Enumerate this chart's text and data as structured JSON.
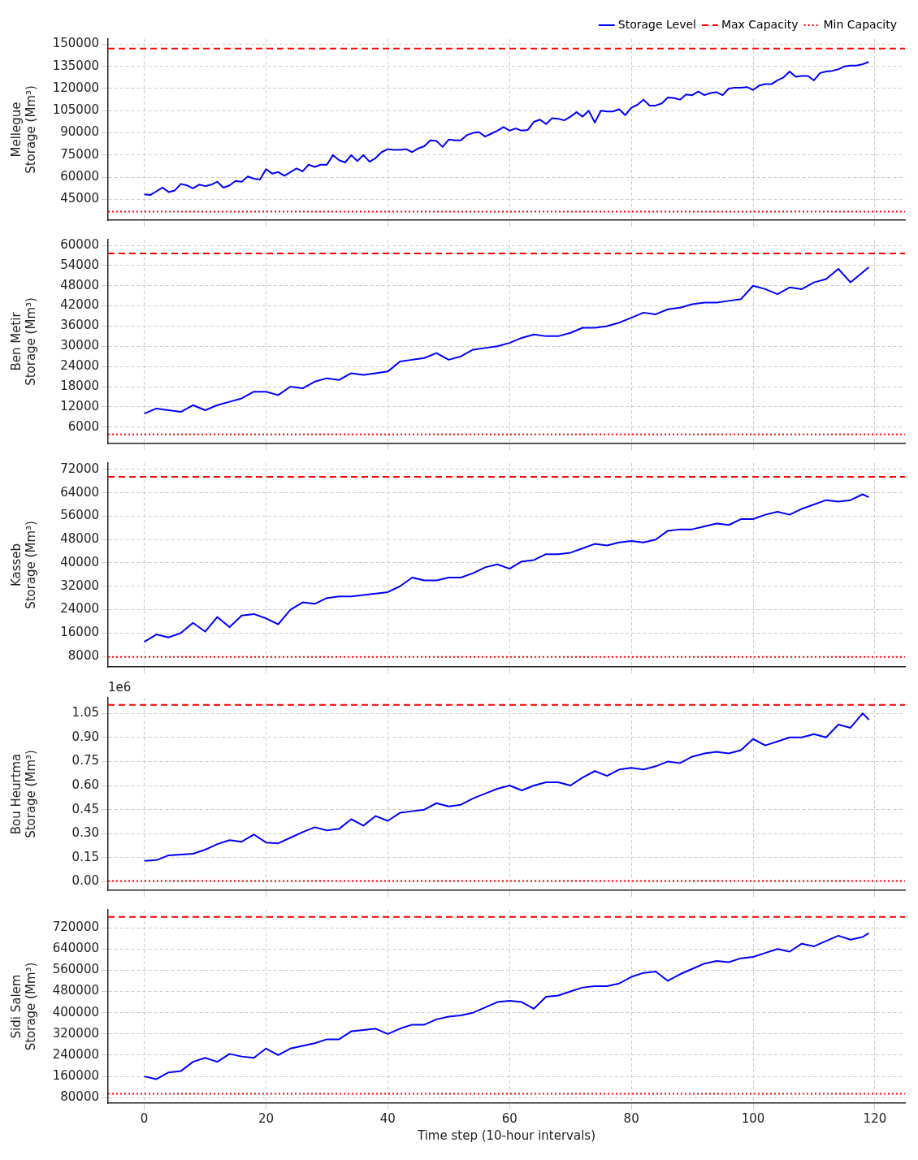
{
  "chart_data": [
    {
      "type": "line",
      "ylabel": "Mellegue\nStorage (Mm³)",
      "x": [
        0,
        1,
        2,
        3,
        4,
        5,
        6,
        7,
        8,
        9,
        10,
        11,
        12,
        13,
        14,
        15,
        16,
        17,
        18,
        19,
        20,
        21,
        22,
        23,
        24,
        25,
        26,
        27,
        28,
        29,
        30,
        31,
        32,
        33,
        34,
        35,
        36,
        37,
        38,
        39,
        40,
        41,
        42,
        43,
        44,
        45,
        46,
        47,
        48,
        49,
        50,
        51,
        52,
        53,
        54,
        55,
        56,
        57,
        58,
        59,
        60,
        61,
        62,
        63,
        64,
        65,
        66,
        67,
        68,
        69,
        70,
        71,
        72,
        73,
        74,
        75,
        76,
        77,
        78,
        79,
        80,
        81,
        82,
        83,
        84,
        85,
        86,
        87,
        88,
        89,
        90,
        91,
        92,
        93,
        94,
        95,
        96,
        97,
        98,
        99,
        100,
        101,
        102,
        103,
        104,
        105,
        106,
        107,
        108,
        109,
        110,
        111,
        112,
        113,
        114,
        115,
        116,
        117,
        118,
        119
      ],
      "series": [
        {
          "name": "Storage Level",
          "color": "#0000ff",
          "values": [
            48500,
            48000,
            50500,
            53000,
            50000,
            51000,
            55500,
            54500,
            52500,
            55000,
            54000,
            55000,
            57000,
            53000,
            54500,
            57500,
            57000,
            60500,
            59000,
            58500,
            65500,
            62500,
            63500,
            61000,
            63500,
            66000,
            64000,
            68500,
            67000,
            68500,
            68500,
            75000,
            71500,
            70000,
            75000,
            71000,
            75000,
            70500,
            73000,
            77000,
            79000,
            78500,
            78500,
            79000,
            77000,
            79500,
            81000,
            85000,
            84500,
            80500,
            85500,
            85000,
            85000,
            88500,
            90000,
            90500,
            87500,
            89500,
            91500,
            94000,
            91500,
            93000,
            91500,
            92000,
            97500,
            99000,
            96000,
            100000,
            99500,
            98500,
            101000,
            104000,
            101000,
            105000,
            97000,
            105000,
            104500,
            104500,
            106000,
            102000,
            107000,
            109000,
            112500,
            108500,
            108500,
            110000,
            114000,
            113500,
            112500,
            116000,
            115500,
            118000,
            115500,
            117000,
            117500,
            115500,
            120000,
            120500,
            120500,
            121000,
            119000,
            122000,
            123000,
            123000,
            125500,
            127500,
            131500,
            128000,
            128500,
            128500,
            125500,
            130500,
            131500,
            132000,
            133000,
            135000,
            135500,
            135500,
            136500,
            138000
          ]
        }
      ],
      "ref_lines": [
        {
          "axis": "y",
          "value": 147000,
          "label": "Max Capacity",
          "color": "#ff0000",
          "line_style": "dashed"
        },
        {
          "axis": "y",
          "value": 36700,
          "label": "Min Capacity",
          "color": "#ff0000",
          "line_style": "dotted"
        }
      ],
      "xlim": [
        -5.95,
        124.95
      ],
      "xticks": [
        0,
        20,
        40,
        60,
        80,
        100,
        120
      ],
      "ylim": [
        31000,
        153500
      ],
      "yticks": [
        45000,
        60000,
        75000,
        90000,
        105000,
        120000,
        135000,
        150000
      ],
      "grid": true,
      "legend": "top right",
      "tick_labels": "y"
    },
    {
      "type": "line",
      "ylabel": "Ben Metir\nStorage (Mm³)",
      "x": [
        0,
        2,
        4,
        6,
        8,
        10,
        12,
        14,
        16,
        18,
        20,
        22,
        24,
        26,
        28,
        30,
        32,
        34,
        36,
        38,
        40,
        42,
        44,
        46,
        48,
        50,
        52,
        54,
        56,
        58,
        60,
        62,
        64,
        66,
        68,
        70,
        72,
        74,
        76,
        78,
        80,
        82,
        84,
        86,
        88,
        90,
        92,
        94,
        96,
        98,
        100,
        102,
        104,
        106,
        108,
        110,
        112,
        114,
        116,
        118,
        119
      ],
      "series": [
        {
          "color": "#0000ff",
          "values": [
            10000,
            11500,
            11000,
            10500,
            12500,
            11000,
            12500,
            13500,
            14500,
            16500,
            16500,
            15500,
            18000,
            17500,
            19500,
            20500,
            20000,
            22000,
            21500,
            22000,
            22500,
            25500,
            26000,
            26500,
            28000,
            26000,
            27000,
            29000,
            29500,
            30000,
            31000,
            32500,
            33500,
            33000,
            33000,
            34000,
            35500,
            35500,
            36000,
            37000,
            38500,
            40000,
            39500,
            41000,
            41500,
            42500,
            43000,
            43000,
            43500,
            44000,
            48000,
            47000,
            45500,
            47500,
            47000,
            49000,
            50000,
            53000,
            49000,
            52000,
            53500
          ]
        }
      ],
      "ref_lines": [
        {
          "axis": "y",
          "value": 57600,
          "color": "#ff0000",
          "line_style": "dashed"
        },
        {
          "axis": "y",
          "value": 3800,
          "color": "#ff0000",
          "line_style": "dotted"
        }
      ],
      "xlim": [
        -5.95,
        124.95
      ],
      "xticks": [
        0,
        20,
        40,
        60,
        80,
        100,
        120
      ],
      "ylim": [
        1100,
        61700
      ],
      "yticks": [
        6000,
        12000,
        18000,
        24000,
        30000,
        36000,
        42000,
        48000,
        54000,
        60000
      ],
      "grid": true,
      "tick_labels": "y"
    },
    {
      "type": "line",
      "ylabel": "Kasseb\nStorage (Mm³)",
      "x": [
        0,
        2,
        4,
        6,
        8,
        10,
        12,
        14,
        16,
        18,
        20,
        22,
        24,
        26,
        28,
        30,
        32,
        34,
        36,
        38,
        40,
        42,
        44,
        46,
        48,
        50,
        52,
        54,
        56,
        58,
        60,
        62,
        64,
        66,
        68,
        70,
        72,
        74,
        76,
        78,
        80,
        82,
        84,
        86,
        88,
        90,
        92,
        94,
        96,
        98,
        100,
        102,
        104,
        106,
        108,
        110,
        112,
        114,
        116,
        118,
        119
      ],
      "series": [
        {
          "color": "#0000ff",
          "values": [
            13000,
            15500,
            14500,
            16000,
            19500,
            16500,
            21500,
            18000,
            22000,
            22500,
            21000,
            19000,
            24000,
            26500,
            26000,
            28000,
            28500,
            28500,
            29000,
            29500,
            30000,
            32000,
            35000,
            34000,
            34000,
            35000,
            35000,
            36500,
            38500,
            39500,
            38000,
            40500,
            41000,
            43000,
            43000,
            43500,
            45000,
            46500,
            46000,
            47000,
            47500,
            47000,
            48000,
            51000,
            51500,
            51500,
            52500,
            53500,
            53000,
            55000,
            55000,
            56500,
            57500,
            56500,
            58500,
            60000,
            61500,
            61000,
            61500,
            63500,
            62500
          ]
        }
      ],
      "ref_lines": [
        {
          "axis": "y",
          "value": 69500,
          "color": "#ff0000",
          "line_style": "dashed"
        },
        {
          "axis": "y",
          "value": 7800,
          "color": "#ff0000",
          "line_style": "dotted"
        }
      ],
      "xlim": [
        -5.95,
        124.95
      ],
      "xticks": [
        0,
        20,
        40,
        60,
        80,
        100,
        120
      ],
      "ylim": [
        4400,
        74200
      ],
      "yticks": [
        8000,
        16000,
        24000,
        32000,
        40000,
        48000,
        56000,
        64000,
        72000
      ],
      "grid": true,
      "tick_labels": "y"
    },
    {
      "type": "line",
      "ylabel": "Bou Heurtma\nStorage (Mm³)",
      "annotations": [
        "1e6"
      ],
      "x": [
        0,
        2,
        4,
        6,
        8,
        10,
        12,
        14,
        16,
        18,
        20,
        22,
        24,
        26,
        28,
        30,
        32,
        34,
        36,
        38,
        40,
        42,
        44,
        46,
        48,
        50,
        52,
        54,
        56,
        58,
        60,
        62,
        64,
        66,
        68,
        70,
        72,
        74,
        76,
        78,
        80,
        82,
        84,
        86,
        88,
        90,
        92,
        94,
        96,
        98,
        100,
        102,
        104,
        106,
        108,
        110,
        112,
        114,
        116,
        118,
        119
      ],
      "series": [
        {
          "color": "#0000ff",
          "values": [
            0.13,
            0.135,
            0.165,
            0.17,
            0.175,
            0.2,
            0.235,
            0.26,
            0.25,
            0.295,
            0.245,
            0.24,
            0.275,
            0.31,
            0.34,
            0.32,
            0.33,
            0.39,
            0.35,
            0.41,
            0.38,
            0.43,
            0.44,
            0.45,
            0.49,
            0.47,
            0.48,
            0.52,
            0.55,
            0.58,
            0.6,
            0.57,
            0.6,
            0.62,
            0.62,
            0.6,
            0.65,
            0.69,
            0.66,
            0.7,
            0.71,
            0.7,
            0.72,
            0.75,
            0.74,
            0.78,
            0.8,
            0.81,
            0.8,
            0.82,
            0.89,
            0.85,
            0.875,
            0.9,
            0.9,
            0.92,
            0.9,
            0.98,
            0.96,
            1.05,
            1.01
          ]
        }
      ],
      "ref_lines": [
        {
          "axis": "y",
          "value": 1.103,
          "color": "#ff0000",
          "line_style": "dashed"
        },
        {
          "axis": "y",
          "value": 0.005,
          "color": "#ff0000",
          "line_style": "dotted"
        }
      ],
      "xlim": [
        -5.95,
        124.95
      ],
      "xticks": [
        0,
        20,
        40,
        60,
        80,
        100,
        120
      ],
      "ylim": [
        -0.053,
        1.147
      ],
      "yticks": [
        {
          "value": 0,
          "label": "0.00"
        },
        0.15,
        {
          "value": 0.3,
          "label": "0.30"
        },
        0.45,
        {
          "value": 0.6,
          "label": "0.60"
        },
        0.75,
        {
          "value": 0.9,
          "label": "0.90"
        },
        1.05
      ],
      "grid": true,
      "tick_labels": "y"
    },
    {
      "type": "line",
      "ylabel": "Sidi Salem\nStorage (Mm³)",
      "xlabel": "Time step (10-hour intervals)",
      "x": [
        0,
        2,
        4,
        6,
        8,
        10,
        12,
        14,
        16,
        18,
        20,
        22,
        24,
        26,
        28,
        30,
        32,
        34,
        36,
        38,
        40,
        42,
        44,
        46,
        48,
        50,
        52,
        54,
        56,
        58,
        60,
        62,
        64,
        66,
        68,
        70,
        72,
        74,
        76,
        78,
        80,
        82,
        84,
        86,
        88,
        90,
        92,
        94,
        96,
        98,
        100,
        102,
        104,
        106,
        108,
        110,
        112,
        114,
        116,
        118,
        119
      ],
      "series": [
        {
          "color": "#0000ff",
          "values": [
            160000,
            150000,
            175000,
            180000,
            215000,
            230000,
            215000,
            245000,
            235000,
            230000,
            265000,
            240000,
            265000,
            275000,
            285000,
            300000,
            300000,
            330000,
            335000,
            340000,
            320000,
            340000,
            355000,
            355000,
            375000,
            385000,
            390000,
            400000,
            420000,
            440000,
            445000,
            440000,
            415000,
            460000,
            465000,
            480000,
            495000,
            500000,
            500000,
            510000,
            535000,
            550000,
            555000,
            520000,
            545000,
            565000,
            585000,
            595000,
            590000,
            605000,
            610000,
            625000,
            640000,
            630000,
            660000,
            650000,
            670000,
            690000,
            675000,
            685000,
            700000
          ]
        }
      ],
      "ref_lines": [
        {
          "axis": "y",
          "value": 761000,
          "color": "#ff0000",
          "line_style": "dashed"
        },
        {
          "axis": "y",
          "value": 95000,
          "color": "#ff0000",
          "line_style": "dotted"
        }
      ],
      "xlim": [
        -5.95,
        124.95
      ],
      "xticks": [
        0,
        20,
        40,
        60,
        80,
        100,
        120
      ],
      "ylim": [
        59500,
        787500
      ],
      "yticks": [
        80000,
        160000,
        240000,
        320000,
        400000,
        480000,
        560000,
        640000,
        720000
      ],
      "grid": true
    }
  ]
}
